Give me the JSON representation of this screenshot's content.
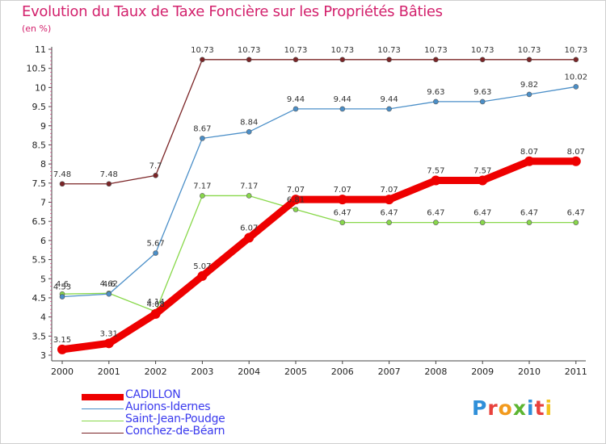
{
  "header": {
    "title": "Evolution du Taux de Taxe Foncière sur les Propriétés Bâties",
    "unit": "(en %)"
  },
  "logo": {
    "text": "Proxiti",
    "letter_colors": [
      "#2f8fd9",
      "#e8413c",
      "#f29a1d",
      "#5cb531",
      "#2f8fd9",
      "#e8413c",
      "#f2c31d"
    ]
  },
  "chart_data": {
    "type": "line",
    "title": "Evolution du Taux de Taxe Foncière sur les Propriétés Bâties",
    "ylabel": "(en %)",
    "xlabel": "",
    "categories": [
      "2000",
      "2001",
      "2002",
      "2003",
      "2004",
      "2005",
      "2006",
      "2007",
      "2008",
      "2009",
      "2010",
      "2011"
    ],
    "ylim": [
      3,
      11
    ],
    "yticks": [
      "3",
      "3.5",
      "4",
      "4.5",
      "5",
      "5.5",
      "6",
      "6.5",
      "7",
      "7.5",
      "8",
      "8.5",
      "9",
      "9.5",
      "10",
      "10.5",
      "11"
    ],
    "grid": false,
    "legend_position": "bottom-left",
    "series": [
      {
        "name": "CADILLON",
        "color": "#ee0000",
        "emphasis": true,
        "values": [
          3.15,
          3.31,
          4.08,
          5.07,
          6.07,
          7.07,
          7.07,
          7.07,
          7.57,
          7.57,
          8.07,
          8.07
        ],
        "labels": [
          "3.15",
          "3.31",
          "4.08",
          "5.07",
          "6.07",
          "7.07",
          "7.07",
          "7.07",
          "7.57",
          "7.57",
          "8.07",
          "8.07"
        ]
      },
      {
        "name": "Aurions-Idernes",
        "color": "#4b8fc8",
        "emphasis": false,
        "values": [
          4.53,
          4.6,
          5.67,
          8.67,
          8.84,
          9.44,
          9.44,
          9.44,
          9.63,
          9.63,
          9.82,
          10.02
        ],
        "labels": [
          "4.53",
          "4.6",
          "5.67",
          "8.67",
          "8.84",
          "9.44",
          "9.44",
          "9.44",
          "9.63",
          "9.63",
          "9.82",
          "10.02"
        ]
      },
      {
        "name": "Saint-Jean-Poudge",
        "color": "#88d84a",
        "emphasis": false,
        "values": [
          4.6,
          4.62,
          4.14,
          7.17,
          7.17,
          6.81,
          6.47,
          6.47,
          6.47,
          6.47,
          6.47,
          6.47
        ],
        "labels": [
          "4.6",
          "4.62",
          "4.14",
          "7.17",
          "7.17",
          "6.81",
          "6.47",
          "6.47",
          "6.47",
          "6.47",
          "6.47",
          "6.47"
        ]
      },
      {
        "name": "Conchez-de-Béarn",
        "color": "#7b2426",
        "emphasis": false,
        "values": [
          7.48,
          7.48,
          7.7,
          10.73,
          10.73,
          10.73,
          10.73,
          10.73,
          10.73,
          10.73,
          10.73,
          10.73
        ],
        "labels": [
          "7.48",
          "7.48",
          "7.7",
          "10.73",
          "10.73",
          "10.73",
          "10.73",
          "10.73",
          "10.73",
          "10.73",
          "10.73",
          "10.73"
        ]
      }
    ]
  }
}
